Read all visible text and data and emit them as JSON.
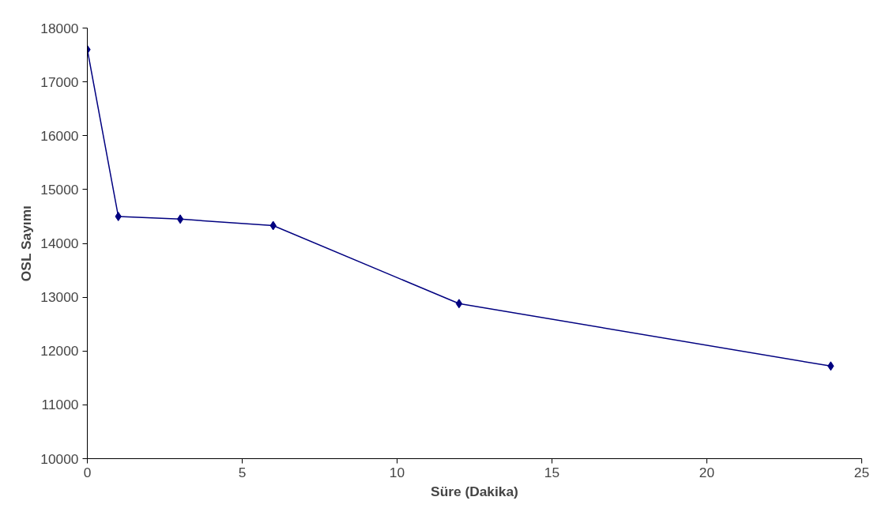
{
  "chart_data": {
    "type": "line",
    "xlabel": "Süre (Dakika)",
    "ylabel": "OSL Sayımı",
    "x": [
      0,
      1,
      3,
      6,
      12,
      24
    ],
    "series": [
      {
        "color": "#000080",
        "values": [
          17600,
          14500,
          14450,
          14330,
          12880,
          11720
        ]
      }
    ],
    "xlim": [
      0,
      25
    ],
    "xticks": [
      0,
      5,
      10,
      15,
      20,
      25
    ],
    "ylim": [
      10000,
      18000
    ],
    "yticks": [
      10000,
      11000,
      12000,
      13000,
      14000,
      15000,
      16000,
      17000,
      18000
    ],
    "grid": false,
    "marker": "diamond",
    "line_style": "solid"
  }
}
